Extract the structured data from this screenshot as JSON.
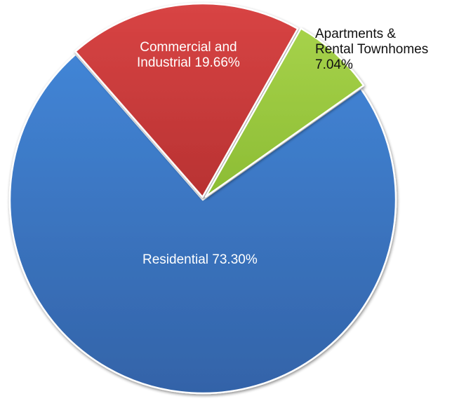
{
  "chart_data": {
    "type": "pie",
    "title": "",
    "slices": [
      {
        "label": "Residential",
        "value": 73.3,
        "display": "Residential 73.30%",
        "color": "#3c78c8",
        "color_dark": "#3366aa"
      },
      {
        "label": "Commercial and Industrial",
        "value": 19.66,
        "display": "Commercial and Industrial 19.66%",
        "color": "#d24040",
        "color_dark": "#b03030"
      },
      {
        "label": "Apartments & Rental Townhomes",
        "value": 7.04,
        "display": "Apartments & Rental Townhomes 7.04%",
        "color": "#9ccb42",
        "color_dark": "#84b030"
      }
    ],
    "legend": "none",
    "data_labels": true
  },
  "labels": {
    "residential": "Residential 73.30%",
    "commercial_line1": "Commercial and",
    "commercial_line2": "Industrial 19.66%",
    "apartments_line1": "Apartments &",
    "apartments_line2": "Rental Townhomes",
    "apartments_line3": "7.04%"
  }
}
